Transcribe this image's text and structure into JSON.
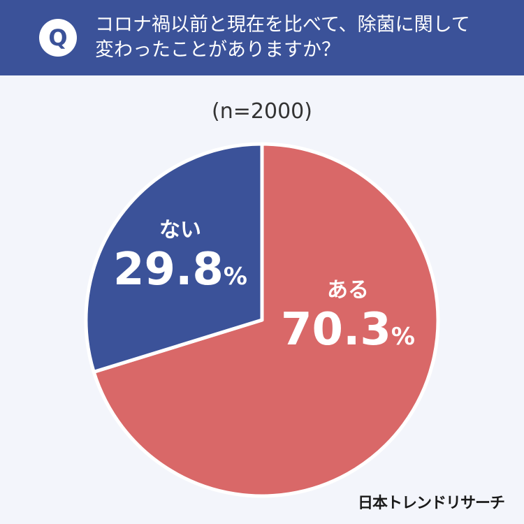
{
  "header": {
    "badge": "Q",
    "question_lines": [
      "コロナ禍以前と現在を比べて、除菌に関して",
      "変わったことがありますか？"
    ]
  },
  "sample_label": "(n=2000)",
  "unit": "%",
  "brand": "日本トレンドリサーチ",
  "colors": {
    "header": "#3b5299",
    "aru": "#d96868",
    "nai": "#3b5299"
  },
  "chart_data": {
    "type": "pie",
    "title": "",
    "slices": [
      {
        "label": "ある",
        "value": 70.3,
        "display": "70.3",
        "color": "#d96868"
      },
      {
        "label": "ない",
        "value": 29.8,
        "display": "29.8",
        "color": "#3b5299"
      }
    ],
    "start_angle": "12 o'clock",
    "direction": "clockwise"
  }
}
